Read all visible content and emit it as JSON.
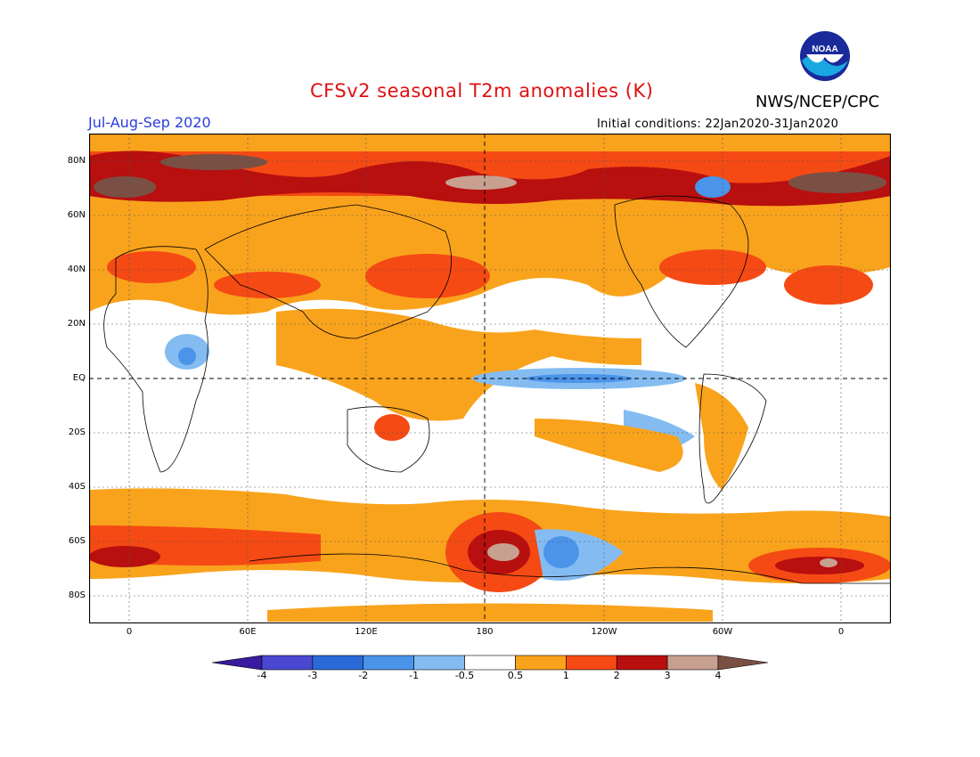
{
  "header": {
    "title": "CFSv2 seasonal T2m anomalies (K)",
    "season": "Jul-Aug-Sep 2020",
    "agency": "NWS/NCEP/CPC",
    "initial_conditions": "Initial conditions: 22Jan2020-31Jan2020",
    "logo_text": "NOAA"
  },
  "map": {
    "lat_labels": [
      "80N",
      "60N",
      "40N",
      "20N",
      "EQ",
      "20S",
      "40S",
      "60S",
      "80S"
    ],
    "lon_labels": [
      "0",
      "60E",
      "120E",
      "180",
      "120W",
      "60W",
      "0"
    ]
  },
  "colorbar": {
    "labels": [
      "-4",
      "-3",
      "-2",
      "-1",
      "-0.5",
      "0.5",
      "1",
      "2",
      "3",
      "4"
    ],
    "colors": [
      "#3a1aa0",
      "#4a48d0",
      "#2a6ad8",
      "#4a94ea",
      "#84bcf2",
      "#ffffff",
      "#f9a31c",
      "#f54a14",
      "#b80f0f",
      "#c8a090",
      "#7a5045"
    ]
  }
}
